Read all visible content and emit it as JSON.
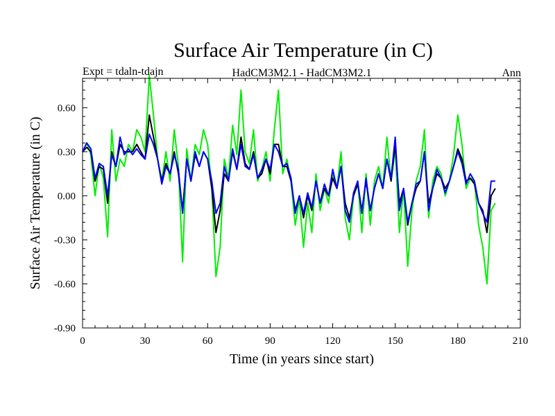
{
  "chart_data": {
    "type": "line",
    "title": "Surface Air Temperature (in C)",
    "subtitle_left": "Expt = tdaln-tdajn",
    "subtitle_center": "HadCM3M2.1 - HadCM3M2.1",
    "subtitle_right": "Ann",
    "xlabel": "Time (in years since start)",
    "ylabel": "Surface Air Temperature (in C)",
    "xlim": [
      0,
      210
    ],
    "ylim": [
      -0.9,
      0.8
    ],
    "xticks": [
      0,
      30,
      60,
      90,
      120,
      150,
      180,
      210
    ],
    "xtick_labels": [
      "0",
      "30",
      "60",
      "90",
      "120",
      "150",
      "180",
      "210"
    ],
    "yticks": [
      -0.9,
      -0.6,
      -0.3,
      0.0,
      0.3,
      0.6
    ],
    "ytick_labels": [
      "-0.90",
      "-0.60",
      "-0.30",
      "0.00",
      "0.30",
      "0.60"
    ],
    "series": [
      {
        "name": "green",
        "color": "#00ee00",
        "x": [
          0,
          2,
          4,
          6,
          8,
          10,
          12,
          14,
          16,
          18,
          20,
          22,
          24,
          26,
          28,
          30,
          32,
          34,
          36,
          38,
          40,
          42,
          44,
          46,
          48,
          50,
          52,
          54,
          56,
          58,
          60,
          62,
          64,
          66,
          68,
          70,
          72,
          74,
          76,
          78,
          80,
          82,
          84,
          86,
          88,
          90,
          92,
          94,
          96,
          98,
          100,
          102,
          104,
          106,
          108,
          110,
          112,
          114,
          116,
          118,
          120,
          122,
          124,
          126,
          128,
          130,
          132,
          134,
          136,
          138,
          140,
          142,
          144,
          146,
          148,
          150,
          152,
          154,
          156,
          158,
          160,
          162,
          164,
          166,
          168,
          170,
          172,
          174,
          176,
          178,
          180,
          182,
          184,
          186,
          188,
          190,
          192,
          194,
          196,
          198
        ],
        "values": [
          0.3,
          0.36,
          0.28,
          0.0,
          0.22,
          0.12,
          -0.28,
          0.45,
          0.1,
          0.25,
          0.2,
          0.35,
          0.3,
          0.45,
          0.4,
          0.3,
          0.82,
          0.55,
          0.25,
          0.1,
          0.3,
          0.1,
          0.45,
          0.2,
          -0.45,
          0.32,
          0.1,
          0.35,
          0.28,
          0.45,
          0.35,
          0.05,
          -0.55,
          -0.35,
          0.25,
          0.12,
          0.48,
          0.28,
          0.72,
          0.3,
          0.22,
          0.45,
          0.1,
          0.18,
          0.3,
          0.1,
          0.45,
          0.72,
          0.15,
          0.25,
          0.1,
          -0.2,
          -0.02,
          -0.35,
          -0.05,
          -0.25,
          0.15,
          -0.1,
          0.05,
          -0.05,
          0.15,
          0.05,
          0.3,
          -0.15,
          -0.3,
          0.0,
          0.1,
          -0.25,
          0.15,
          -0.2,
          0.1,
          0.2,
          0.05,
          0.4,
          0.1,
          0.32,
          -0.25,
          0.05,
          -0.48,
          -0.1,
          0.1,
          0.2,
          0.45,
          -0.15,
          0.1,
          0.2,
          0.15,
          0.0,
          0.1,
          0.28,
          0.55,
          0.35,
          0.05,
          0.12,
          0.1,
          -0.2,
          -0.35,
          -0.6,
          -0.1,
          -0.05
        ]
      },
      {
        "name": "black",
        "color": "#000000",
        "x": [
          0,
          2,
          4,
          6,
          8,
          10,
          12,
          14,
          16,
          18,
          20,
          22,
          24,
          26,
          28,
          30,
          32,
          34,
          36,
          38,
          40,
          42,
          44,
          46,
          48,
          50,
          52,
          54,
          56,
          58,
          60,
          62,
          64,
          66,
          68,
          70,
          72,
          74,
          76,
          78,
          80,
          82,
          84,
          86,
          88,
          90,
          92,
          94,
          96,
          98,
          100,
          102,
          104,
          106,
          108,
          110,
          112,
          114,
          116,
          118,
          120,
          122,
          124,
          126,
          128,
          130,
          132,
          134,
          136,
          138,
          140,
          142,
          144,
          146,
          148,
          150,
          152,
          154,
          156,
          158,
          160,
          162,
          164,
          166,
          168,
          170,
          172,
          174,
          176,
          178,
          180,
          182,
          184,
          186,
          188,
          190,
          192,
          194,
          196,
          198
        ],
        "values": [
          0.3,
          0.33,
          0.3,
          0.1,
          0.2,
          0.18,
          -0.05,
          0.3,
          0.2,
          0.35,
          0.3,
          0.3,
          0.3,
          0.35,
          0.3,
          0.25,
          0.55,
          0.4,
          0.25,
          0.1,
          0.22,
          0.15,
          0.3,
          0.15,
          -0.1,
          0.25,
          0.1,
          0.28,
          0.2,
          0.3,
          0.25,
          0.05,
          -0.25,
          -0.1,
          0.15,
          0.1,
          0.3,
          0.18,
          0.4,
          0.22,
          0.18,
          0.3,
          0.12,
          0.15,
          0.25,
          0.15,
          0.35,
          0.35,
          0.2,
          0.2,
          0.1,
          -0.1,
          0.0,
          -0.15,
          0.0,
          -0.1,
          0.1,
          -0.05,
          0.05,
          0.0,
          0.12,
          0.05,
          0.2,
          -0.05,
          -0.15,
          0.0,
          0.08,
          -0.1,
          0.1,
          -0.1,
          0.05,
          0.15,
          0.05,
          0.25,
          0.1,
          0.35,
          -0.05,
          0.05,
          -0.2,
          -0.05,
          0.05,
          0.1,
          0.3,
          -0.05,
          0.05,
          0.15,
          0.12,
          0.05,
          0.1,
          0.2,
          0.32,
          0.25,
          0.1,
          0.12,
          0.08,
          -0.05,
          -0.1,
          -0.25,
          0.0,
          0.05
        ]
      },
      {
        "name": "blue",
        "color": "#0000ff",
        "x": [
          0,
          2,
          4,
          6,
          8,
          10,
          12,
          14,
          16,
          18,
          20,
          22,
          24,
          26,
          28,
          30,
          32,
          34,
          36,
          38,
          40,
          42,
          44,
          46,
          48,
          50,
          52,
          54,
          56,
          58,
          60,
          62,
          64,
          66,
          68,
          70,
          72,
          74,
          76,
          78,
          80,
          82,
          84,
          86,
          88,
          90,
          92,
          94,
          96,
          98,
          100,
          102,
          104,
          106,
          108,
          110,
          112,
          114,
          116,
          118,
          120,
          122,
          124,
          126,
          128,
          130,
          132,
          134,
          136,
          138,
          140,
          142,
          144,
          146,
          148,
          150,
          152,
          154,
          156,
          158,
          160,
          162,
          164,
          166,
          168,
          170,
          172,
          174,
          176,
          178,
          180,
          182,
          184,
          186,
          188,
          190,
          192,
          194,
          196,
          198
        ],
        "values": [
          0.3,
          0.36,
          0.32,
          0.12,
          0.22,
          0.2,
          0.0,
          0.28,
          0.2,
          0.4,
          0.28,
          0.32,
          0.28,
          0.32,
          0.28,
          0.25,
          0.42,
          0.35,
          0.25,
          0.08,
          0.2,
          0.15,
          0.28,
          0.18,
          -0.12,
          0.25,
          0.1,
          0.3,
          0.2,
          0.3,
          0.25,
          0.1,
          -0.12,
          -0.05,
          0.2,
          0.1,
          0.32,
          0.18,
          0.35,
          0.2,
          0.18,
          0.28,
          0.12,
          0.18,
          0.25,
          0.18,
          0.35,
          0.3,
          0.2,
          0.22,
          0.12,
          -0.12,
          0.0,
          -0.12,
          0.02,
          -0.08,
          0.1,
          -0.05,
          0.08,
          0.0,
          0.18,
          0.05,
          0.2,
          -0.1,
          -0.18,
          0.02,
          0.1,
          -0.12,
          0.12,
          -0.1,
          0.05,
          0.15,
          0.05,
          0.25,
          0.12,
          0.4,
          -0.1,
          0.05,
          -0.18,
          -0.05,
          0.08,
          0.1,
          0.3,
          -0.1,
          0.05,
          0.18,
          0.12,
          0.02,
          0.1,
          0.2,
          0.3,
          0.22,
          0.08,
          0.15,
          0.1,
          -0.05,
          -0.12,
          -0.18,
          0.1,
          0.1
        ]
      }
    ]
  }
}
